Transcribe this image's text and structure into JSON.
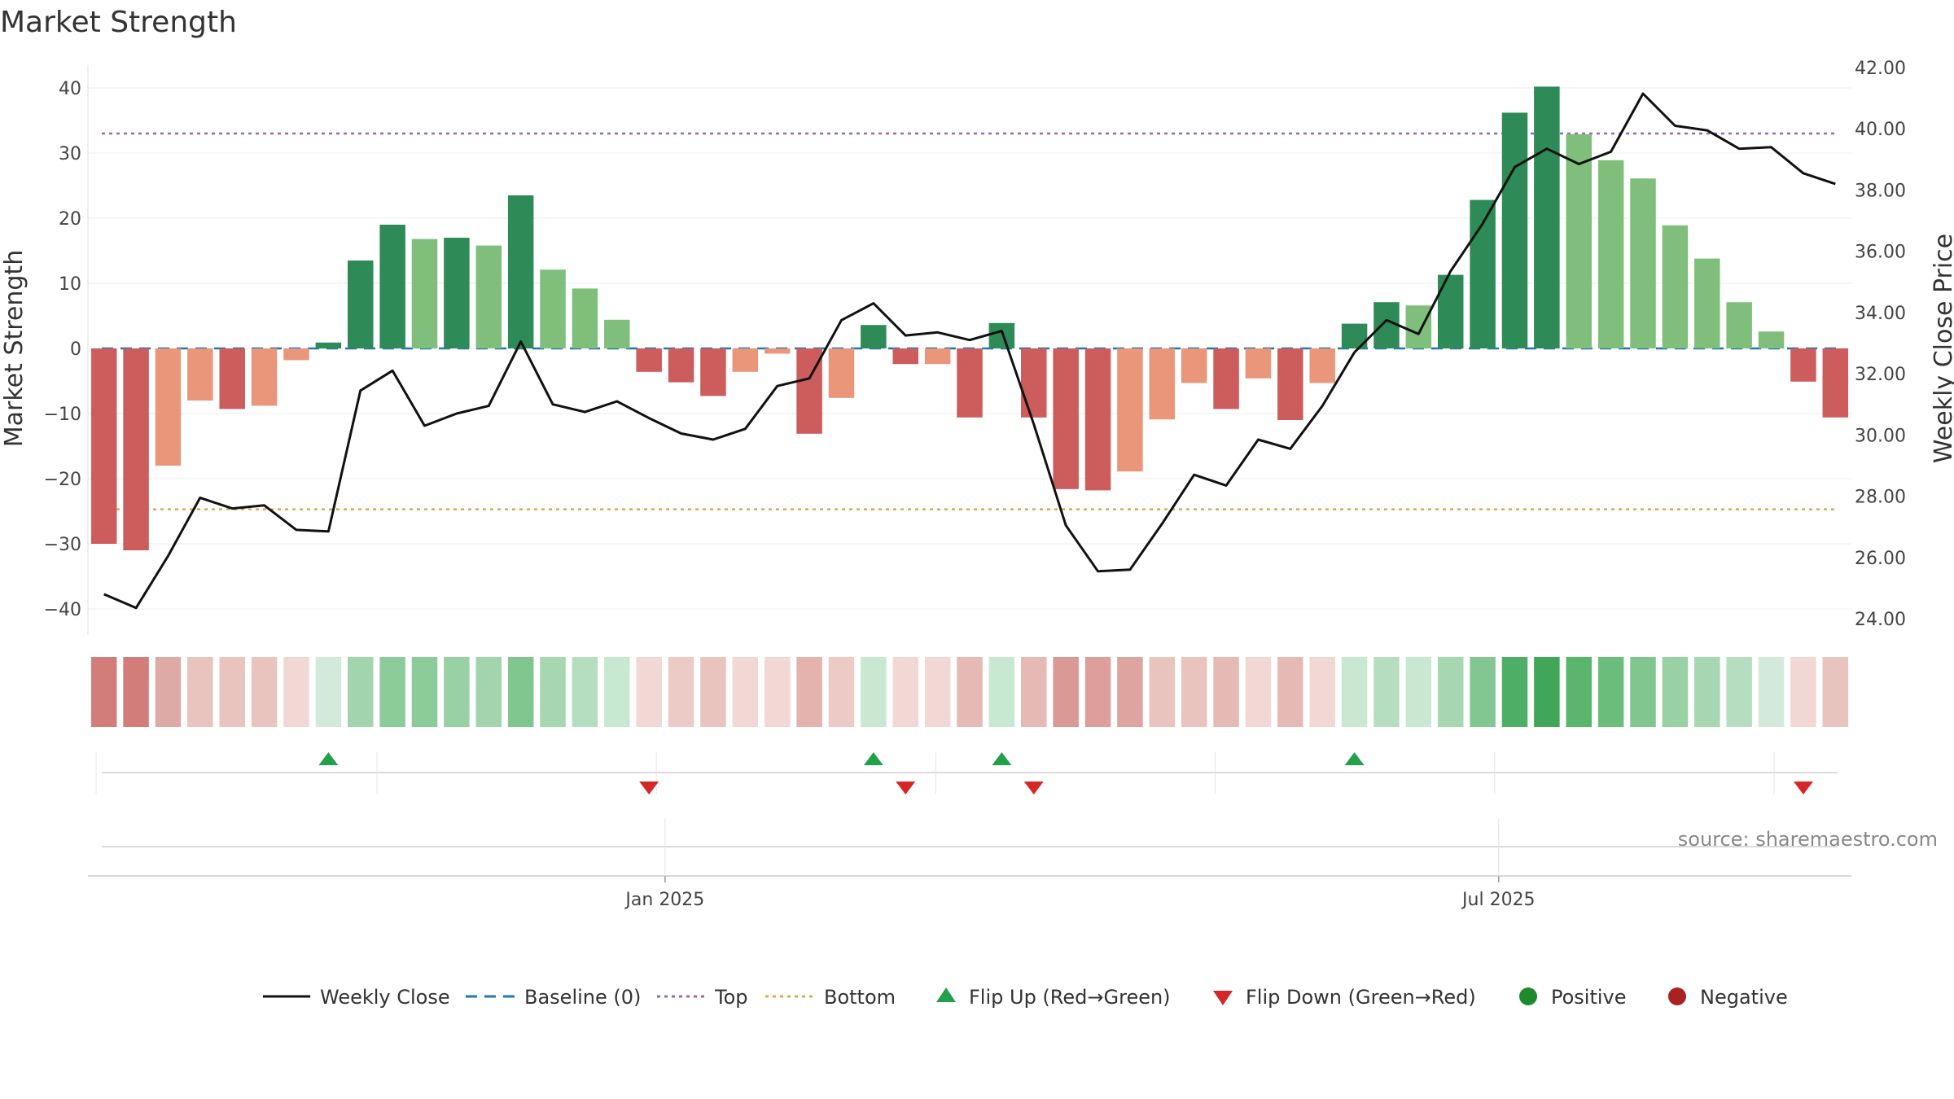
{
  "chart_data": {
    "type": "bar",
    "title": "Market Strength",
    "ylabel_left": "Market Strength",
    "ylabel_right": "Weekly Close Price",
    "ylim_left": [
      -43,
      43
    ],
    "ylim_right": [
      23.4,
      42.7
    ],
    "left_ticks": [
      40,
      30,
      20,
      10,
      0,
      -10,
      -20,
      -30,
      -40
    ],
    "left_tick_labels": [
      "40",
      "30",
      "20",
      "10",
      "0",
      "−10",
      "−20",
      "−30",
      "−40"
    ],
    "right_ticks": [
      42,
      40,
      38,
      36,
      34,
      32,
      30,
      28,
      26,
      24
    ],
    "right_tick_labels": [
      "42.00",
      "40.00",
      "38.00",
      "36.00",
      "34.00",
      "32.00",
      "30.00",
      "28.00",
      "26.00",
      "24.00"
    ],
    "x_tick_labels": [
      {
        "label": "Jan 2025",
        "week_index": 17.5
      },
      {
        "label": "Jul 2025",
        "week_index": 43.5
      }
    ],
    "grid": true,
    "series": [
      {
        "name": "Market Strength",
        "type": "bar",
        "values": [
          -30,
          -31,
          -18,
          -8,
          -9.3,
          -8.8,
          -1.8,
          0.9,
          13.5,
          19,
          16.8,
          17,
          15.8,
          23.5,
          12.1,
          9.2,
          4.4,
          -3.6,
          -5.2,
          -7.3,
          -3.6,
          -0.8,
          -13.1,
          -7.6,
          3.6,
          -2.4,
          -2.4,
          -10.6,
          3.9,
          -10.6,
          -21.6,
          -21.8,
          -18.9,
          -10.9,
          -5.3,
          -9.3,
          -4.6,
          -11,
          -5.3,
          3.8,
          7.1,
          6.6,
          11.3,
          22.8,
          36.2,
          40.2,
          32.9,
          28.9,
          26.1,
          18.9,
          13.8,
          7.1,
          2.6,
          -5.1,
          -10.6
        ],
        "colors": [
          "#cd5c5c",
          "#cd5c5c",
          "#e9967a",
          "#e9967a",
          "#cd5c5c",
          "#e9967a",
          "#e9967a",
          "#2e8b57",
          "#2e8b57",
          "#2e8b57",
          "#7fbf7b",
          "#2e8b57",
          "#7fbf7b",
          "#2e8b57",
          "#7fbf7b",
          "#7fbf7b",
          "#7fbf7b",
          "#cd5c5c",
          "#cd5c5c",
          "#cd5c5c",
          "#e9967a",
          "#e9967a",
          "#cd5c5c",
          "#e9967a",
          "#2e8b57",
          "#cd5c5c",
          "#e9967a",
          "#cd5c5c",
          "#2e8b57",
          "#cd5c5c",
          "#cd5c5c",
          "#cd5c5c",
          "#e9967a",
          "#e9967a",
          "#e9967a",
          "#cd5c5c",
          "#e9967a",
          "#cd5c5c",
          "#e9967a",
          "#2e8b57",
          "#2e8b57",
          "#7fbf7b",
          "#2e8b57",
          "#2e8b57",
          "#2e8b57",
          "#2e8b57",
          "#7fbf7b",
          "#7fbf7b",
          "#7fbf7b",
          "#7fbf7b",
          "#7fbf7b",
          "#7fbf7b",
          "#7fbf7b",
          "#cd5c5c",
          "#cd5c5c"
        ]
      },
      {
        "name": "Weekly Close",
        "type": "line",
        "axis": "right",
        "color": "#111111",
        "values": [
          24.8,
          24.35,
          26.05,
          27.95,
          27.6,
          27.7,
          26.9,
          26.85,
          31.45,
          32.1,
          30.3,
          30.7,
          30.95,
          33.05,
          31.0,
          30.75,
          31.1,
          30.55,
          30.05,
          29.85,
          30.2,
          31.6,
          31.85,
          33.75,
          34.3,
          33.25,
          33.35,
          33.1,
          33.4,
          30.35,
          27.05,
          25.55,
          25.6,
          27.1,
          28.7,
          28.35,
          29.85,
          29.55,
          30.95,
          32.7,
          33.75,
          33.3,
          35.35,
          36.9,
          38.75,
          39.35,
          38.85,
          39.25,
          41.15,
          40.1,
          39.95,
          39.35,
          39.4,
          38.55,
          38.2
        ]
      },
      {
        "name": "Baseline (0)",
        "type": "hline",
        "value": 0,
        "color": "#1f77b4"
      },
      {
        "name": "Top",
        "type": "hline",
        "value": 33,
        "color": "#9467bd"
      },
      {
        "name": "Bottom",
        "type": "hline",
        "value": -24.7,
        "color": "#e8a34f"
      }
    ],
    "heat_strip": {
      "colors": [
        "#d37d7a",
        "#d37d7a",
        "#deaaa5",
        "#e9c3be",
        "#e9c3be",
        "#e9c3be",
        "#f1d8d4",
        "#d3eadb",
        "#a2d5ad",
        "#8ccc9b",
        "#8ccc9b",
        "#98d1a4",
        "#a2d5ad",
        "#7fc78f",
        "#a6d7b0",
        "#b5dec0",
        "#c9e8d1",
        "#f1d8d4",
        "#eccbc7",
        "#e9c3be",
        "#f1d8d4",
        "#f1d8d4",
        "#e4b3ad",
        "#eccbc7",
        "#c9e8d1",
        "#f1d8d4",
        "#f1d8d4",
        "#e6bab4",
        "#c9e8d1",
        "#e6bab4",
        "#db9996",
        "#de9f9c",
        "#dea5a0",
        "#e9c3be",
        "#e9c3be",
        "#e6bab4",
        "#f1d8d4",
        "#e6bab4",
        "#f1d8d4",
        "#c9e8d1",
        "#b5dec0",
        "#c9e8d1",
        "#a6d7b0",
        "#82c791",
        "#4fae65",
        "#3fa757",
        "#5ab56d",
        "#6bbd7c",
        "#7fc78f",
        "#98d1a4",
        "#a6d7b0",
        "#b5dec0",
        "#d3eadb",
        "#f1d8d4",
        "#e9c3be"
      ]
    },
    "flips": {
      "up": [
        7,
        24,
        28,
        39
      ],
      "down": [
        17,
        25,
        29,
        53
      ]
    },
    "legend": [
      {
        "label": "Weekly Close",
        "symbol": "line",
        "color": "#111111"
      },
      {
        "label": "Baseline (0)",
        "symbol": "dash",
        "color": "#1f77b4"
      },
      {
        "label": "Top",
        "symbol": "dot",
        "color": "#9467bd"
      },
      {
        "label": "Bottom",
        "symbol": "dot",
        "color": "#e8a34f"
      },
      {
        "label": "Flip Up (Red→Green)",
        "symbol": "tri-up",
        "color": "#22a04a"
      },
      {
        "label": "Flip Down (Green→Red)",
        "symbol": "tri-down",
        "color": "#d62728"
      },
      {
        "label": "Positive",
        "symbol": "circle",
        "color": "#1e8a2e"
      },
      {
        "label": "Negative",
        "symbol": "circle",
        "color": "#a82222"
      }
    ],
    "source": "source: sharemaestro.com"
  }
}
